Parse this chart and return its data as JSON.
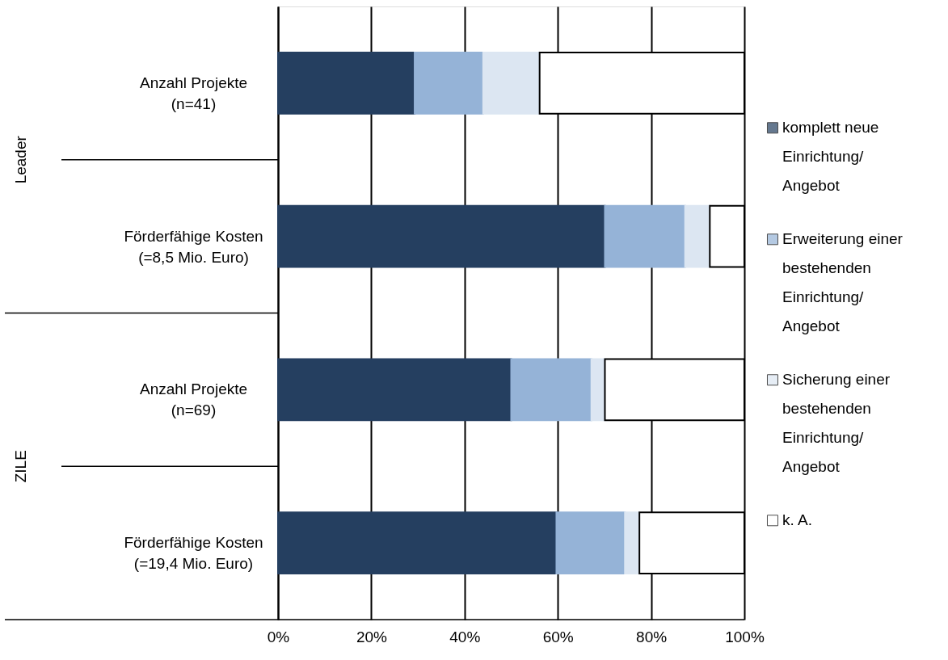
{
  "chart_data": {
    "type": "bar",
    "orientation": "horizontal",
    "stacked": true,
    "categories": [
      "Anzahl Projekte (n=41)",
      "Förderfähige Kosten (=8,5 Mio. Euro)",
      "Anzahl Projekte (n=69)",
      "Förderfähige Kosten (=19,4 Mio. Euro)"
    ],
    "series": [
      {
        "name": "komplett neue Einrichtung/ Angebot",
        "color": "#253f60",
        "values": [
          29.3,
          70.1,
          50.0,
          59.7
        ]
      },
      {
        "name": "Erweiterung einer bestehenden Einrichtung/ Angebot",
        "color": "#95b3d7",
        "values": [
          14.7,
          17.2,
          17.2,
          14.7
        ]
      },
      {
        "name": "Sicherung einer bestehenden Einrichtung/ Angebot",
        "color": "#dce6f2",
        "values": [
          12.1,
          5.3,
          2.9,
          3.1
        ]
      },
      {
        "name": "k. A.",
        "color": "#ffffff",
        "values": [
          43.9,
          7.4,
          29.9,
          22.5
        ]
      }
    ],
    "xlim": [
      0,
      100
    ],
    "xticks": [
      {
        "value": 0,
        "label": "0%"
      },
      {
        "value": 20,
        "label": "20%"
      },
      {
        "value": 40,
        "label": "40%"
      },
      {
        "value": 60,
        "label": "60%"
      },
      {
        "value": 80,
        "label": "80%"
      },
      {
        "value": 100,
        "label": "100%"
      }
    ],
    "annotations": [
      "Leader",
      "ZILE"
    ],
    "grid": "x",
    "legend": "right"
  }
}
